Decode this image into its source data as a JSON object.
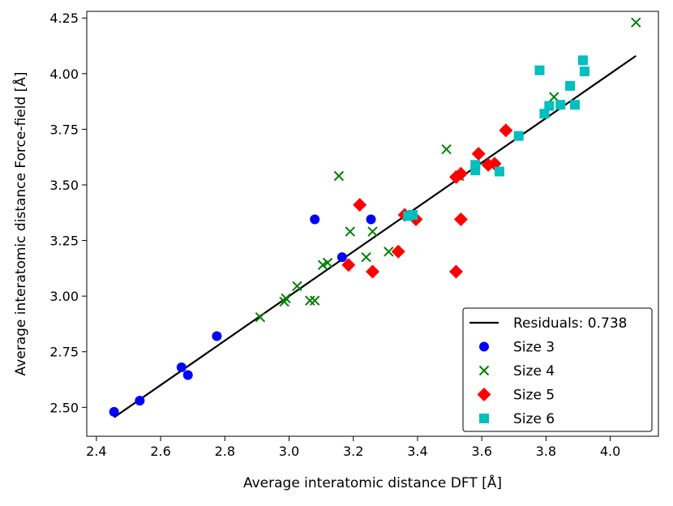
{
  "chart_data": {
    "type": "scatter",
    "title": "",
    "xlabel": "Average interatomic distance DFT [Å]",
    "ylabel": "Average interatomic distance Force-field [Å]",
    "xlim": [
      2.37,
      4.15
    ],
    "ylim": [
      2.37,
      4.28
    ],
    "x_ticks": [
      2.4,
      2.6,
      2.8,
      3.0,
      3.2,
      3.4,
      3.6,
      3.8,
      4.0
    ],
    "x_tick_labels": [
      "2.4",
      "2.6",
      "2.8",
      "3.0",
      "3.2",
      "3.4",
      "3.6",
      "3.8",
      "4.0"
    ],
    "y_ticks": [
      2.5,
      2.75,
      3.0,
      3.25,
      3.5,
      3.75,
      4.0,
      4.25
    ],
    "y_tick_labels": [
      "2.50",
      "2.75",
      "3.00",
      "3.25",
      "3.50",
      "3.75",
      "4.00",
      "4.25"
    ],
    "grid": false,
    "legend_position": "bottom-right",
    "fit_line": {
      "name": "Residuals: 0.738",
      "color": "#000000",
      "x": [
        2.455,
        4.08
      ],
      "y": [
        2.455,
        4.08
      ]
    },
    "series": [
      {
        "name": "Size 3",
        "marker": "circle",
        "color": "#0000ff",
        "points": [
          [
            2.455,
            2.48
          ],
          [
            2.535,
            2.53
          ],
          [
            2.665,
            2.68
          ],
          [
            2.685,
            2.645
          ],
          [
            2.775,
            2.82
          ],
          [
            3.08,
            3.345
          ],
          [
            3.165,
            3.175
          ],
          [
            3.255,
            3.345
          ]
        ]
      },
      {
        "name": "Size 4",
        "marker": "x",
        "color": "#008000",
        "points": [
          [
            2.91,
            2.905
          ],
          [
            2.985,
            2.975
          ],
          [
            2.99,
            2.99
          ],
          [
            3.025,
            3.045
          ],
          [
            3.065,
            2.98
          ],
          [
            3.08,
            2.98
          ],
          [
            3.105,
            3.14
          ],
          [
            3.12,
            3.15
          ],
          [
            3.155,
            3.54
          ],
          [
            3.19,
            3.29
          ],
          [
            3.24,
            3.175
          ],
          [
            3.26,
            3.29
          ],
          [
            3.31,
            3.2
          ],
          [
            3.49,
            3.66
          ],
          [
            3.53,
            3.54
          ],
          [
            3.825,
            3.895
          ],
          [
            4.08,
            4.23
          ]
        ]
      },
      {
        "name": "Size 5",
        "marker": "diamond",
        "color": "#ff0000",
        "points": [
          [
            3.185,
            3.14
          ],
          [
            3.22,
            3.41
          ],
          [
            3.26,
            3.11
          ],
          [
            3.34,
            3.2
          ],
          [
            3.36,
            3.365
          ],
          [
            3.395,
            3.345
          ],
          [
            3.52,
            3.535
          ],
          [
            3.52,
            3.11
          ],
          [
            3.535,
            3.55
          ],
          [
            3.535,
            3.345
          ],
          [
            3.59,
            3.64
          ],
          [
            3.62,
            3.59
          ],
          [
            3.64,
            3.595
          ],
          [
            3.675,
            3.745
          ]
        ]
      },
      {
        "name": "Size 6",
        "marker": "square",
        "color": "#00bfbf",
        "points": [
          [
            3.37,
            3.36
          ],
          [
            3.385,
            3.365
          ],
          [
            3.58,
            3.565
          ],
          [
            3.58,
            3.59
          ],
          [
            3.655,
            3.56
          ],
          [
            3.715,
            3.72
          ],
          [
            3.78,
            4.015
          ],
          [
            3.795,
            3.82
          ],
          [
            3.81,
            3.855
          ],
          [
            3.845,
            3.86
          ],
          [
            3.875,
            3.945
          ],
          [
            3.89,
            3.86
          ],
          [
            3.915,
            4.06
          ],
          [
            3.92,
            4.01
          ]
        ]
      }
    ]
  }
}
